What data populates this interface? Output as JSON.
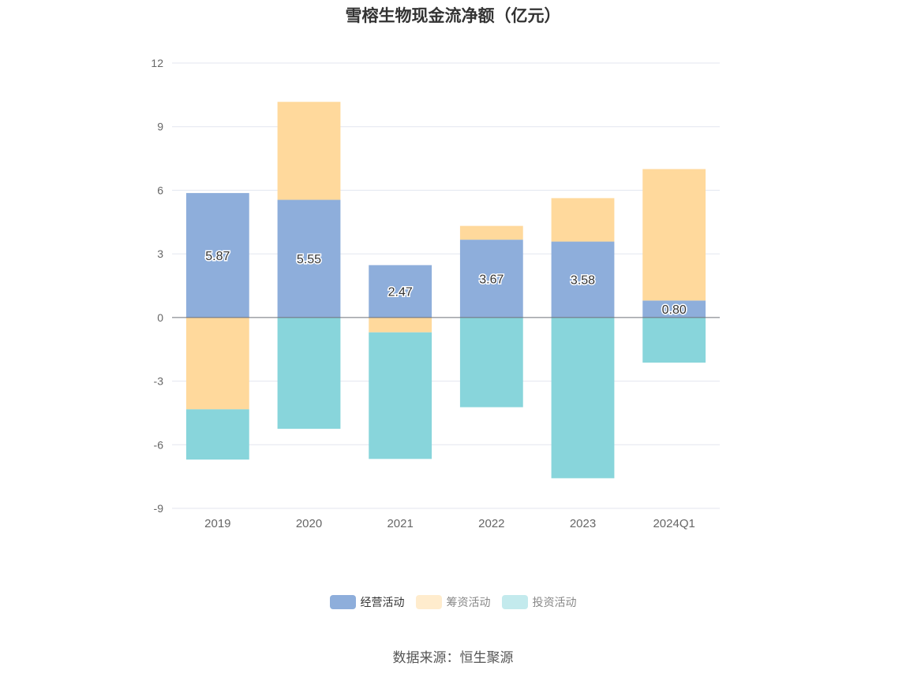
{
  "chart_data": {
    "type": "bar",
    "stacked": true,
    "title": "雪榕生物现金流净额（亿元）",
    "categories": [
      "2019",
      "2020",
      "2021",
      "2022",
      "2023",
      "2024Q1"
    ],
    "series": [
      {
        "name": "经营活动",
        "color": "#8eaedb",
        "values": [
          5.87,
          5.55,
          2.47,
          3.67,
          3.58,
          0.8
        ]
      },
      {
        "name": "筹资活动",
        "color": "#ffd99c",
        "values": [
          -4.33,
          4.62,
          -0.7,
          0.65,
          2.05,
          6.2
        ]
      },
      {
        "name": "投资活动",
        "color": "#88d5db",
        "values": [
          -2.37,
          -5.25,
          -5.97,
          -4.23,
          -7.58,
          -2.13
        ]
      }
    ],
    "data_labels": [
      "5.87",
      "5.55",
      "2.47",
      "3.67",
      "3.58",
      "0.80"
    ],
    "ylim": [
      -9,
      12
    ],
    "yticks": [
      12,
      9,
      6,
      3,
      0,
      -3,
      -6,
      -9
    ],
    "grid": true,
    "legend_position": "bottom",
    "legend_active": [
      true,
      false,
      false
    ]
  },
  "footer": {
    "source": "数据来源：恒生聚源"
  },
  "colors": {
    "legend_inactive_text": "#888888",
    "legend_active_text": "#333333",
    "axis_text": "#666666",
    "grid": "#e3e6ef"
  }
}
